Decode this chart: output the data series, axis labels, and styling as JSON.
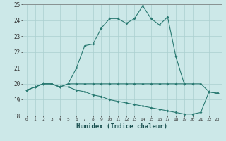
{
  "xlabel": "Humidex (Indice chaleur)",
  "x": [
    0,
    1,
    2,
    3,
    4,
    5,
    6,
    7,
    8,
    9,
    10,
    11,
    12,
    13,
    14,
    15,
    16,
    17,
    18,
    19,
    20,
    21,
    22,
    23
  ],
  "line1": [
    19.6,
    19.8,
    20.0,
    20.0,
    19.8,
    20.0,
    21.0,
    22.4,
    22.5,
    23.5,
    24.1,
    24.1,
    23.8,
    24.1,
    24.9,
    24.1,
    23.7,
    24.2,
    21.7,
    20.0,
    null,
    null,
    19.5,
    19.4
  ],
  "line2": [
    19.6,
    19.8,
    20.0,
    20.0,
    19.8,
    20.0,
    20.0,
    20.0,
    20.0,
    20.0,
    20.0,
    20.0,
    20.0,
    20.0,
    20.0,
    20.0,
    20.0,
    20.0,
    20.0,
    20.0,
    20.0,
    20.0,
    19.5,
    19.4
  ],
  "line3": [
    19.6,
    19.8,
    20.0,
    20.0,
    19.8,
    19.8,
    19.6,
    19.5,
    19.3,
    19.2,
    19.0,
    18.9,
    18.8,
    18.7,
    18.6,
    18.5,
    18.4,
    18.3,
    18.2,
    18.1,
    18.1,
    18.2,
    19.5,
    19.4
  ],
  "color": "#2a7a72",
  "bg_color": "#cce8e8",
  "grid_color": "#aacfcf",
  "ylim": [
    18,
    25
  ],
  "xlim": [
    -0.5,
    23.5
  ],
  "yticks": [
    18,
    19,
    20,
    21,
    22,
    23,
    24,
    25
  ],
  "xticks": [
    0,
    1,
    2,
    3,
    4,
    5,
    6,
    7,
    8,
    9,
    10,
    11,
    12,
    13,
    14,
    15,
    16,
    17,
    18,
    19,
    20,
    21,
    22,
    23
  ]
}
